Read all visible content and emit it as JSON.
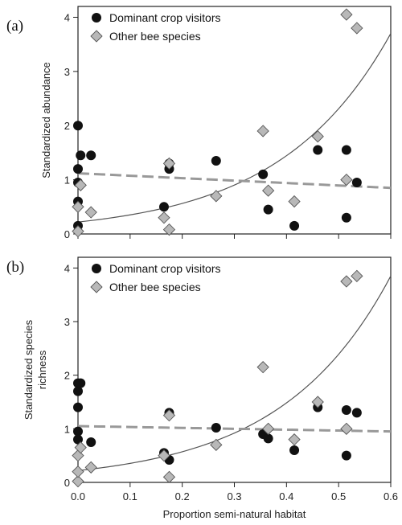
{
  "chart_data": [
    {
      "type": "scatter",
      "panel_label": "(a)",
      "ylabel": "Standardized abundance",
      "xlabel": "",
      "xlim": [
        0,
        0.6
      ],
      "ylim": [
        0,
        4.2
      ],
      "yticks": [
        "0",
        "1",
        "2",
        "3",
        "4"
      ],
      "xticks": [],
      "legend_position": "top-left",
      "series": [
        {
          "name": "Dominant crop visitors",
          "marker": "circle",
          "color": "#111111",
          "points": [
            [
              0.0,
              2.0
            ],
            [
              0.0,
              1.2
            ],
            [
              0.0,
              0.95
            ],
            [
              0.0,
              0.6
            ],
            [
              0.0,
              0.15
            ],
            [
              0.005,
              1.45
            ],
            [
              0.025,
              1.45
            ],
            [
              0.165,
              0.5
            ],
            [
              0.175,
              1.3
            ],
            [
              0.175,
              1.2
            ],
            [
              0.265,
              1.35
            ],
            [
              0.355,
              1.1
            ],
            [
              0.365,
              0.45
            ],
            [
              0.415,
              0.15
            ],
            [
              0.46,
              1.55
            ],
            [
              0.515,
              1.55
            ],
            [
              0.515,
              0.3
            ],
            [
              0.535,
              0.95
            ]
          ]
        },
        {
          "name": "Other bee species",
          "marker": "diamond",
          "color": "#b8b8b8",
          "points": [
            [
              0.0,
              0.05
            ],
            [
              0.0,
              0.5
            ],
            [
              0.005,
              0.9
            ],
            [
              0.025,
              0.4
            ],
            [
              0.165,
              0.3
            ],
            [
              0.175,
              0.08
            ],
            [
              0.175,
              1.3
            ],
            [
              0.265,
              0.7
            ],
            [
              0.355,
              1.9
            ],
            [
              0.365,
              0.8
            ],
            [
              0.415,
              0.6
            ],
            [
              0.46,
              1.8
            ],
            [
              0.515,
              1.0
            ],
            [
              0.515,
              4.05
            ],
            [
              0.535,
              3.8
            ]
          ]
        }
      ],
      "fits": [
        {
          "style": "solid",
          "color": "#555555",
          "form": "exponential",
          "y0": 0.22,
          "x_end": 0.6,
          "y_end": 3.7
        },
        {
          "style": "dashed",
          "color": "#999999",
          "form": "linear",
          "y0": 1.12,
          "y_end": 0.85
        }
      ]
    },
    {
      "type": "scatter",
      "panel_label": "(b)",
      "ylabel": "Standardized species\nrichness",
      "xlabel": "Proportion semi-natural habitat",
      "xlim": [
        0,
        0.6
      ],
      "ylim": [
        0,
        4.2
      ],
      "yticks": [
        "0",
        "1",
        "2",
        "3",
        "4"
      ],
      "xticks": [
        "0.0",
        "0.1",
        "0.2",
        "0.3",
        "0.4",
        "0.5",
        "0.6"
      ],
      "legend_position": "top-left",
      "series": [
        {
          "name": "Dominant crop visitors",
          "marker": "circle",
          "color": "#111111",
          "points": [
            [
              0.0,
              1.85
            ],
            [
              0.0,
              1.7
            ],
            [
              0.0,
              1.4
            ],
            [
              0.0,
              0.95
            ],
            [
              0.0,
              0.8
            ],
            [
              0.005,
              1.85
            ],
            [
              0.025,
              0.75
            ],
            [
              0.165,
              0.55
            ],
            [
              0.175,
              0.42
            ],
            [
              0.175,
              1.3
            ],
            [
              0.265,
              1.02
            ],
            [
              0.355,
              0.9
            ],
            [
              0.365,
              0.82
            ],
            [
              0.415,
              0.6
            ],
            [
              0.46,
              1.4
            ],
            [
              0.515,
              1.35
            ],
            [
              0.515,
              0.5
            ],
            [
              0.535,
              1.3
            ]
          ]
        },
        {
          "name": "Other bee species",
          "marker": "diamond",
          "color": "#b8b8b8",
          "points": [
            [
              0.0,
              0.02
            ],
            [
              0.0,
              0.2
            ],
            [
              0.0,
              0.5
            ],
            [
              0.005,
              0.65
            ],
            [
              0.025,
              0.28
            ],
            [
              0.165,
              0.5
            ],
            [
              0.175,
              0.1
            ],
            [
              0.175,
              1.25
            ],
            [
              0.265,
              0.7
            ],
            [
              0.355,
              2.15
            ],
            [
              0.365,
              1.0
            ],
            [
              0.415,
              0.8
            ],
            [
              0.46,
              1.5
            ],
            [
              0.515,
              1.0
            ],
            [
              0.515,
              3.75
            ],
            [
              0.535,
              3.85
            ]
          ]
        }
      ],
      "fits": [
        {
          "style": "solid",
          "color": "#555555",
          "form": "exponential",
          "y0": 0.22,
          "x_end": 0.6,
          "y_end": 3.85
        },
        {
          "style": "dashed",
          "color": "#999999",
          "form": "linear",
          "y0": 1.05,
          "y_end": 0.95
        }
      ]
    }
  ]
}
